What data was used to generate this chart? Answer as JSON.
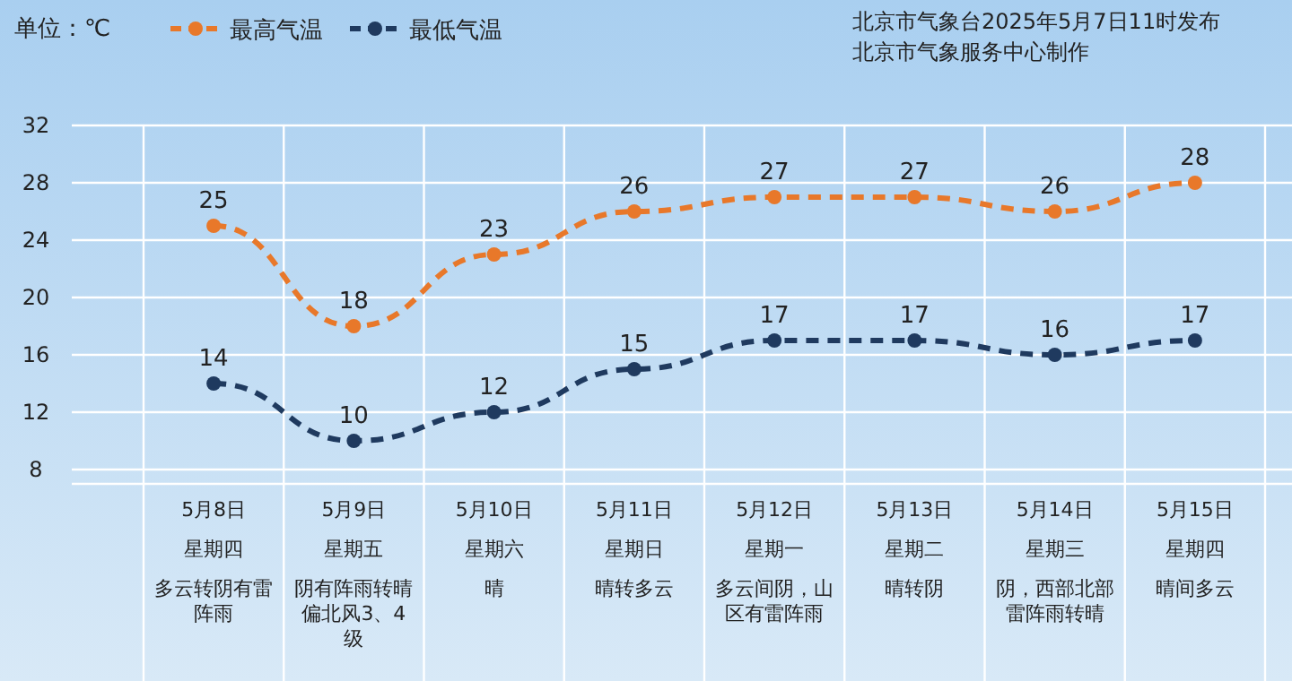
{
  "chart_data": {
    "type": "line",
    "ylabel": "单位：℃",
    "categories": [
      "5月8日",
      "5月9日",
      "5月10日",
      "5月11日",
      "5月12日",
      "5月13日",
      "5月14日",
      "5月15日"
    ],
    "series": [
      {
        "name": "最高气温",
        "color": "#e8782a",
        "values": [
          25,
          18,
          23,
          26,
          27,
          27,
          26,
          28
        ]
      },
      {
        "name": "最低气温",
        "color": "#1f3a5f",
        "values": [
          14,
          10,
          12,
          15,
          17,
          17,
          16,
          17
        ]
      }
    ],
    "ylim": [
      8,
      32
    ],
    "yticks": [
      8,
      12,
      16,
      20,
      24,
      28,
      32
    ],
    "grid": "y",
    "legend": "top left",
    "marker": "circle",
    "line_style": "dashed",
    "data_labels": true,
    "annotations": [
      "北京市气象台2025年5月7日11时发布",
      "北京市气象服务中心制作",
      "星期四",
      "星期五",
      "星期六",
      "星期日",
      "星期一",
      "星期二",
      "星期三",
      "星期四",
      "多云转阴有雷阵雨",
      "阴有阵雨转晴偏北风3、4级",
      "晴",
      "晴转多云",
      "多云间阴，山区有雷阵雨",
      "晴转阴",
      "阴，西部北部雷阵雨转晴",
      "晴间多云"
    ]
  }
}
